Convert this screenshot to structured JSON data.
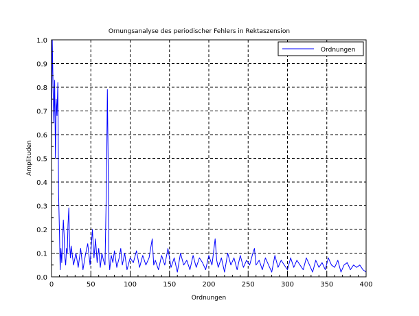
{
  "chart_data": {
    "type": "line",
    "title": "Ornungsanalyse des periodischer Fehlers in Rektaszension",
    "xlabel": "Ordnungen",
    "ylabel": "Amplituden",
    "xlim": [
      0,
      400
    ],
    "ylim": [
      0.0,
      1.0
    ],
    "xticks": [
      0,
      50,
      100,
      150,
      200,
      250,
      300,
      350,
      400
    ],
    "yticks": [
      0.0,
      0.1,
      0.2,
      0.3,
      0.4,
      0.5,
      0.6,
      0.7,
      0.8,
      0.9,
      1.0
    ],
    "xtick_labels": [
      "0",
      "50",
      "100",
      "150",
      "200",
      "250",
      "300",
      "350",
      "400"
    ],
    "ytick_labels": [
      "0.0",
      "0.1",
      "0.2",
      "0.3",
      "0.4",
      "0.5",
      "0.6",
      "0.7",
      "0.8",
      "0.9",
      "1.0"
    ],
    "grid": true,
    "legend_position": "top-right",
    "series": [
      {
        "name": "Ordnungen",
        "color": "#0000ff",
        "x": [
          0,
          1,
          2,
          3,
          4,
          5,
          6,
          7,
          8,
          9,
          10,
          11,
          12,
          13,
          14,
          15,
          16,
          17,
          18,
          19,
          20,
          21,
          22,
          23,
          24,
          25,
          28,
          31,
          34,
          37,
          40,
          43,
          46,
          49,
          52,
          54,
          56,
          58,
          60,
          62,
          64,
          66,
          68,
          70,
          71,
          72,
          73,
          74,
          76,
          78,
          80,
          83,
          86,
          88,
          90,
          93,
          96,
          100,
          104,
          108,
          112,
          116,
          120,
          124,
          128,
          130,
          132,
          136,
          140,
          144,
          148,
          152,
          156,
          160,
          164,
          168,
          172,
          176,
          180,
          184,
          188,
          192,
          196,
          200,
          204,
          208,
          210,
          212,
          216,
          220,
          224,
          228,
          232,
          236,
          240,
          244,
          248,
          252,
          256,
          258,
          260,
          264,
          268,
          272,
          276,
          280,
          284,
          288,
          292,
          296,
          300,
          304,
          308,
          312,
          316,
          320,
          324,
          328,
          332,
          336,
          340,
          344,
          348,
          352,
          356,
          360,
          364,
          368,
          372,
          376,
          380,
          384,
          388,
          392,
          396,
          400
        ],
        "values": [
          0.55,
          1.0,
          0.8,
          0.65,
          0.83,
          0.5,
          0.75,
          0.68,
          0.82,
          0.35,
          0.2,
          0.03,
          0.12,
          0.06,
          0.15,
          0.24,
          0.18,
          0.08,
          0.05,
          0.12,
          0.1,
          0.22,
          0.29,
          0.14,
          0.08,
          0.13,
          0.05,
          0.1,
          0.04,
          0.12,
          0.03,
          0.09,
          0.14,
          0.05,
          0.2,
          0.08,
          0.16,
          0.06,
          0.12,
          0.04,
          0.1,
          0.07,
          0.05,
          0.42,
          0.79,
          0.5,
          0.08,
          0.03,
          0.09,
          0.06,
          0.11,
          0.04,
          0.08,
          0.12,
          0.05,
          0.1,
          0.03,
          0.08,
          0.06,
          0.11,
          0.04,
          0.09,
          0.05,
          0.08,
          0.16,
          0.05,
          0.07,
          0.03,
          0.09,
          0.05,
          0.12,
          0.04,
          0.08,
          0.02,
          0.1,
          0.05,
          0.07,
          0.03,
          0.09,
          0.04,
          0.08,
          0.06,
          0.03,
          0.09,
          0.05,
          0.16,
          0.07,
          0.04,
          0.08,
          0.02,
          0.1,
          0.05,
          0.08,
          0.03,
          0.09,
          0.04,
          0.07,
          0.05,
          0.1,
          0.12,
          0.05,
          0.07,
          0.03,
          0.08,
          0.05,
          0.02,
          0.09,
          0.04,
          0.07,
          0.05,
          0.03,
          0.08,
          0.04,
          0.07,
          0.05,
          0.03,
          0.08,
          0.05,
          0.02,
          0.07,
          0.04,
          0.06,
          0.03,
          0.08,
          0.05,
          0.04,
          0.07,
          0.02,
          0.05,
          0.06,
          0.03,
          0.05,
          0.04,
          0.05,
          0.03,
          0.02
        ]
      }
    ]
  }
}
